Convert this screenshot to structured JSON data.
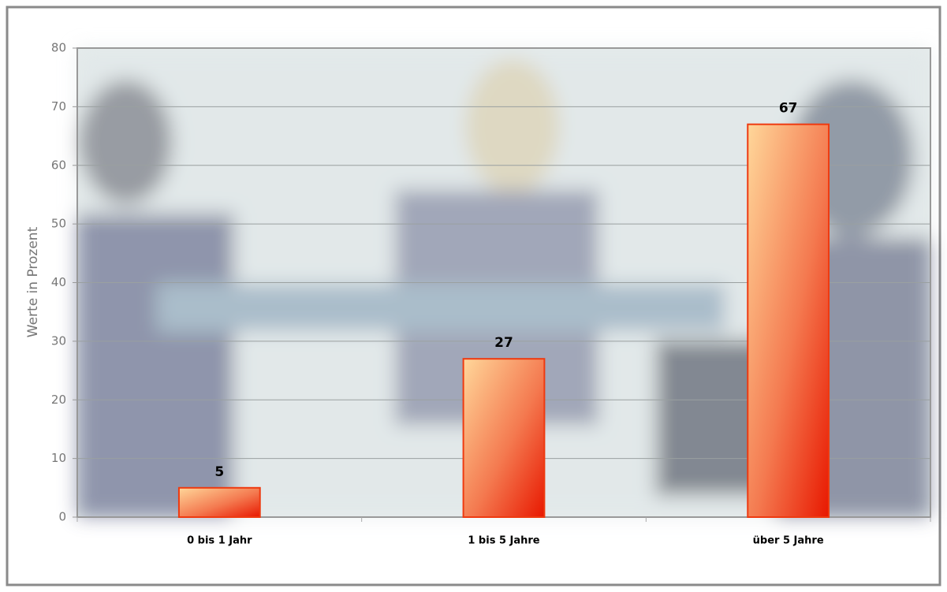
{
  "chart_data": {
    "type": "bar",
    "y_label": "Werte in Prozent",
    "categories": [
      "0 bis 1 Jahr",
      "1 bis 5 Jahre",
      "über 5 Jahre"
    ],
    "values": [
      5,
      27,
      67
    ],
    "color": "#ee3a10",
    "ylim": [
      0,
      80
    ],
    "yticks": [
      0,
      10,
      20,
      30,
      40,
      50,
      60,
      70,
      80
    ],
    "grid": true
  }
}
